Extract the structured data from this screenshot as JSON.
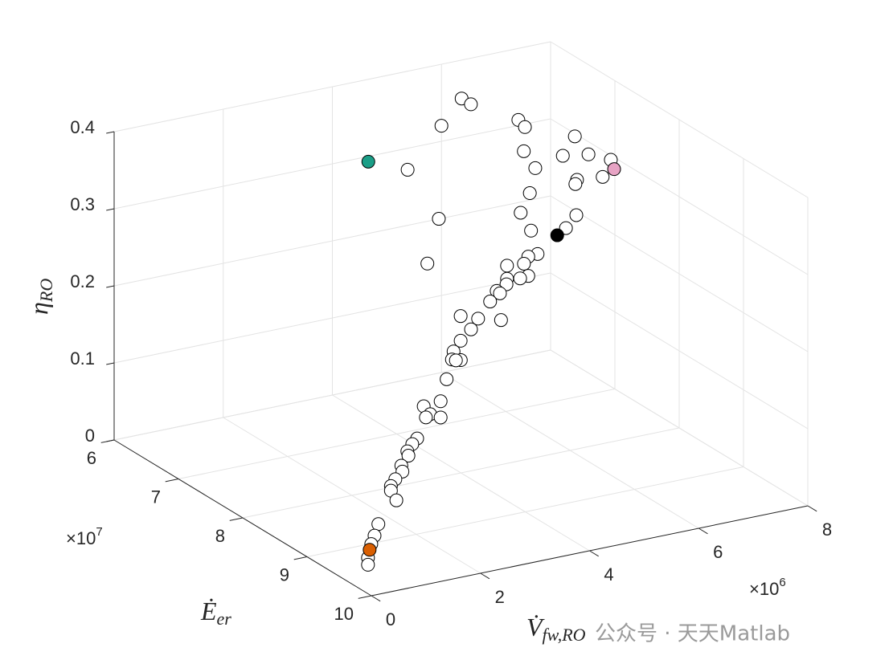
{
  "chart_data": {
    "type": "scatter3d",
    "xlabel": {
      "base": "V̇",
      "sub": "fw,RO"
    },
    "ylabel": {
      "base": "Ė",
      "sub": "er"
    },
    "zlabel": {
      "base": "η",
      "sub": "RO"
    },
    "xexponent": {
      "base": "×10",
      "power": "6"
    },
    "yexponent": {
      "base": "×10",
      "power": "7"
    },
    "xlim": [
      0,
      8000000
    ],
    "ylim": [
      60000000,
      100000000
    ],
    "zlim": [
      0,
      0.4
    ],
    "xticks": [
      0,
      {
        "value": 2000000,
        "label": "2"
      },
      {
        "value": 4000000,
        "label": "4"
      },
      {
        "value": 6000000,
        "label": "6"
      },
      {
        "value": 8000000,
        "label": "8"
      }
    ],
    "yticks": [
      {
        "value": 60000000,
        "label": "6"
      },
      {
        "value": 70000000,
        "label": "7"
      },
      {
        "value": 80000000,
        "label": "8"
      },
      {
        "value": 90000000,
        "label": "9"
      },
      {
        "value": 100000000,
        "label": "10"
      }
    ],
    "zticks": [
      0,
      0.1,
      0.2,
      0.3,
      0.4
    ],
    "grid": true,
    "edgecolor": "#000000",
    "series": [
      {
        "color": "#ffffff",
        "x": [
          5780000,
          5950000,
          5410000,
          6820000,
          6940000,
          6920000,
          7130000,
          4790000,
          7030000,
          7030000,
          6810000,
          7280000,
          7690000,
          7070000,
          7040000,
          7540000,
          5330000,
          6350000,
          3830000,
          5520000,
          6160000,
          3620000,
          5640000,
          5470000,
          5390000,
          5080000,
          5470000,
          5320000,
          5080000,
          5070000,
          4890000,
          4950000,
          4770000,
          4230000,
          4550000,
          4970000,
          4420000,
          4230000,
          4100000,
          4070000,
          3290000,
          3200000,
          3030000,
          2920000,
          2610000,
          2730000,
          2650000,
          2920000,
          2490000,
          2400000,
          2310000,
          2330000,
          2200000,
          2220000,
          2090000,
          830000,
          830000,
          930000,
          600000,
          530000,
          470000,
          410000,
          410000
        ],
        "y": [
          65000000,
          65000000,
          65000000,
          65000000,
          65000000,
          65000000,
          65000000,
          65000000,
          65000000,
          72000000,
          72000000,
          72000000,
          72000000,
          72000000,
          72000000,
          72000000,
          78000000,
          78000000,
          78000000,
          78000000,
          78000000,
          78000000,
          78000000,
          78000000,
          78000000,
          78000000,
          78000000,
          78000000,
          78000000,
          78000000,
          78000000,
          78000000,
          78000000,
          78000000,
          78000000,
          78000000,
          78000000,
          78000000,
          78000000,
          78000000,
          86000000,
          86000000,
          86000000,
          86000000,
          86000000,
          86000000,
          86000000,
          86000000,
          86000000,
          86000000,
          86000000,
          86000000,
          86000000,
          86000000,
          86000000,
          96000000,
          96000000,
          96000000,
          96000000,
          96000000,
          96000000,
          96000000,
          96000000
        ],
        "z": [
          0.384,
          0.374,
          0.354,
          0.341,
          0.33,
          0.299,
          0.274,
          0.306,
          0.243,
          0.352,
          0.33,
          0.325,
          0.312,
          0.295,
          0.29,
          0.292,
          0.308,
          0.29,
          0.322,
          0.282,
          0.276,
          0.267,
          0.25,
          0.249,
          0.241,
          0.243,
          0.224,
          0.223,
          0.226,
          0.219,
          0.213,
          0.209,
          0.201,
          0.19,
          0.182,
          0.174,
          0.17,
          0.158,
          0.146,
          0.136,
          0.187,
          0.188,
          0.166,
          0.139,
          0.137,
          0.125,
          0.122,
          0.118,
          0.097,
          0.091,
          0.083,
          0.077,
          0.066,
          0.058,
          0.05,
          0.11,
          0.104,
          0.09,
          0.064,
          0.05,
          0.04,
          0.023,
          0.014
        ]
      },
      {
        "color": "#1b9e87",
        "x": [
          4070000
        ],
        "y": [
          65000000
        ],
        "z": [
          0.327
        ]
      },
      {
        "color": "#e7a3c4",
        "x": [
          7750000
        ],
        "y": [
          72000000
        ],
        "z": [
          0.299
        ]
      },
      {
        "color": "#000000",
        "x": [
          6000000
        ],
        "y": [
          78000000
        ],
        "z": [
          0.269
        ]
      },
      {
        "color": "#d95f02",
        "x": [
          440000
        ],
        "y": [
          96000000
        ],
        "z": [
          0.033
        ]
      }
    ],
    "watermark": "公众号 · 天天Matlab"
  }
}
